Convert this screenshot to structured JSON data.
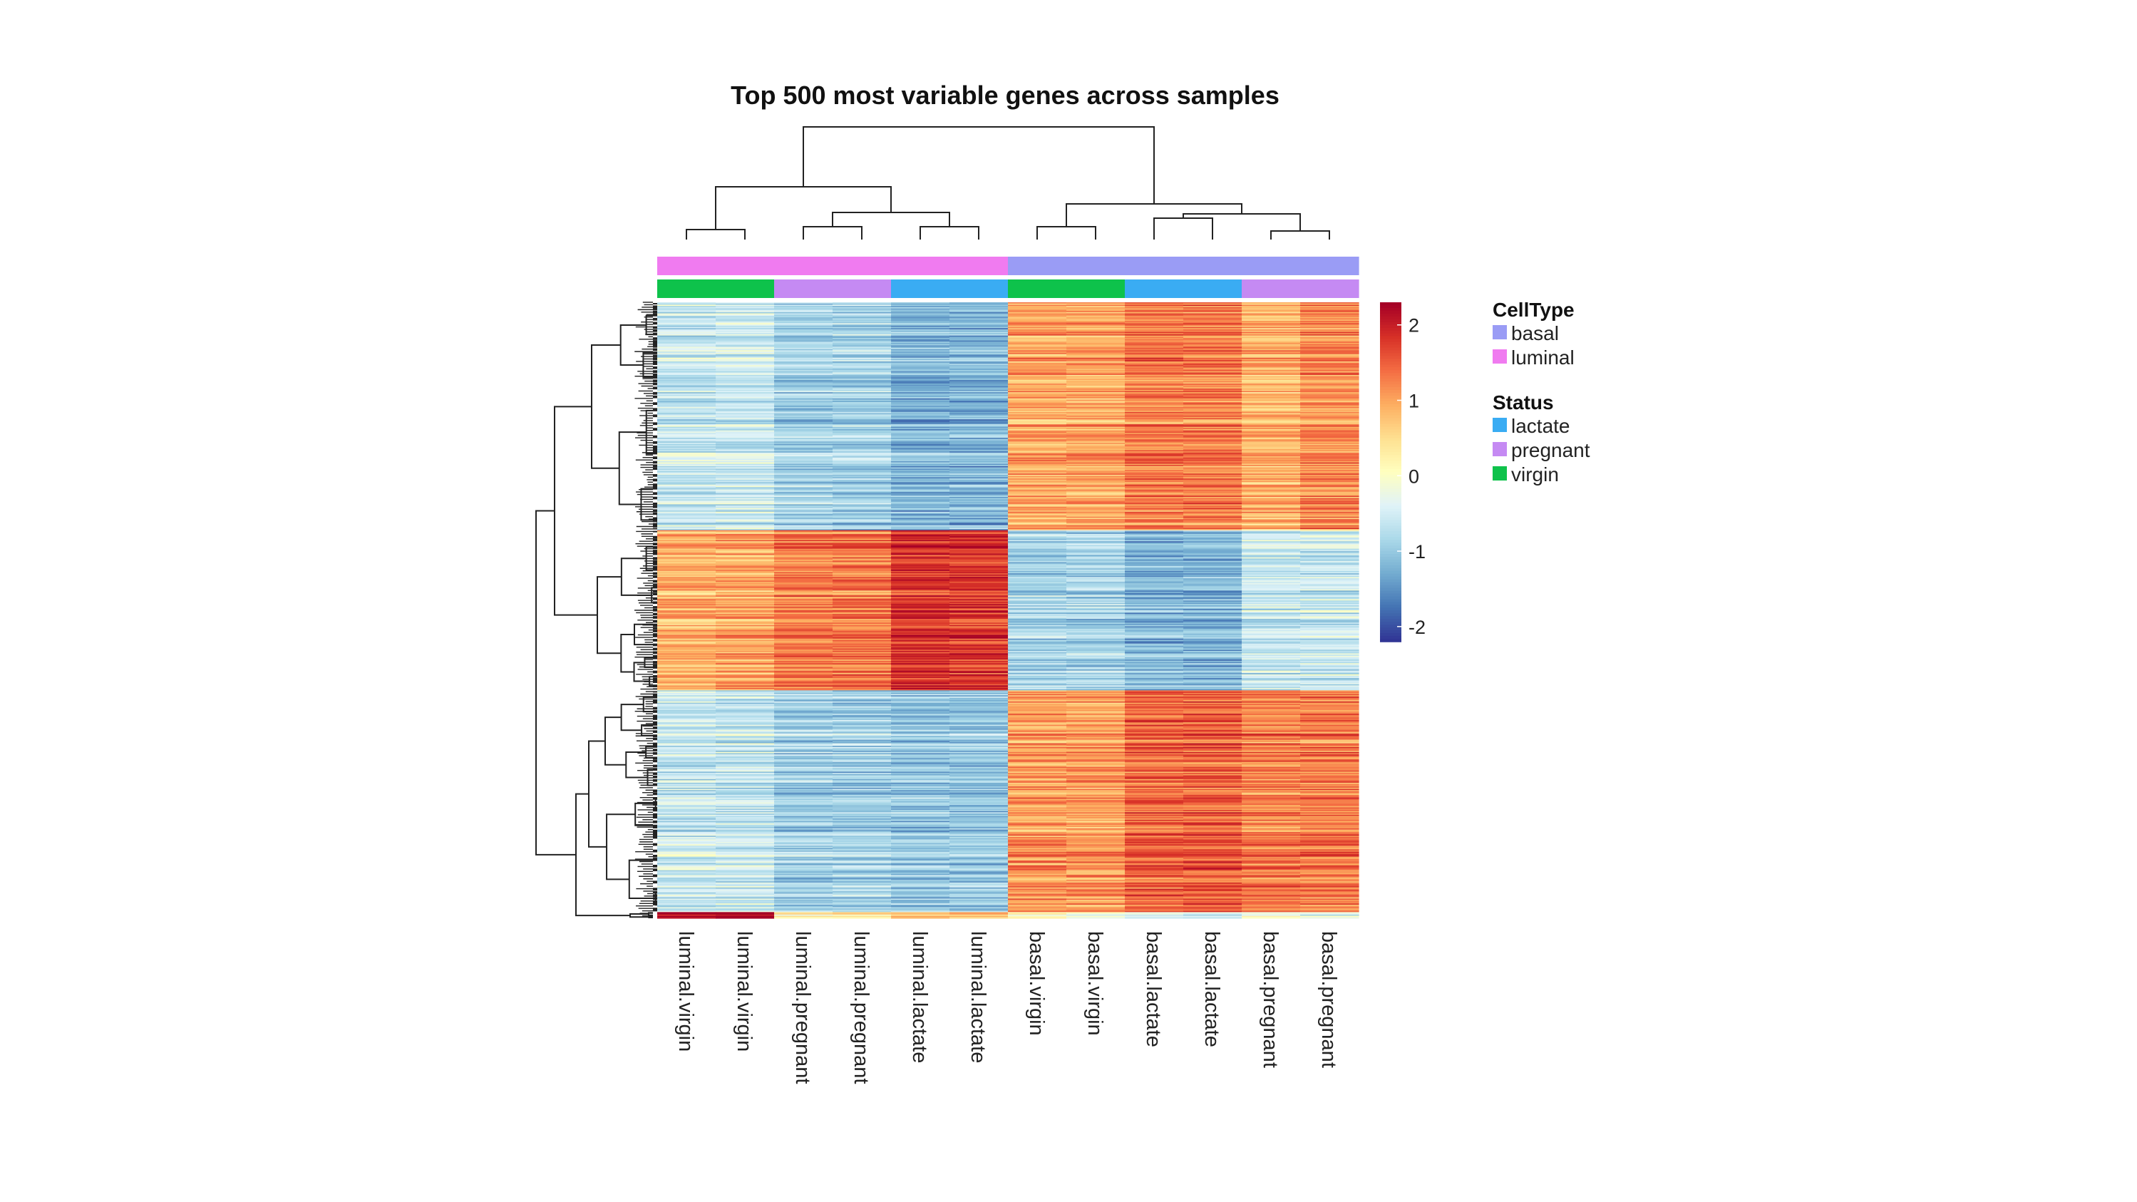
{
  "chart_data": {
    "type": "heatmap",
    "title": "Top 500 most variable genes across samples",
    "columns": [
      "luminal.virgin",
      "luminal.virgin",
      "luminal.pregnant",
      "luminal.pregnant",
      "luminal.lactate",
      "luminal.lactate",
      "basal.virgin",
      "basal.virgin",
      "basal.lactate",
      "basal.lactate",
      "basal.pregnant",
      "basal.pregnant"
    ],
    "rows": 500,
    "row_clusters": [
      {
        "rows": 185,
        "values": [
          -0.6,
          -0.6,
          -0.9,
          -0.9,
          -1.2,
          -1.2,
          1.0,
          1.0,
          1.3,
          1.3,
          0.9,
          1.2
        ]
      },
      {
        "rows": 130,
        "values": [
          0.9,
          1.0,
          1.3,
          1.3,
          1.8,
          1.8,
          -0.9,
          -0.9,
          -1.2,
          -1.2,
          -0.6,
          -0.6
        ]
      },
      {
        "rows": 180,
        "values": [
          -0.6,
          -0.6,
          -0.9,
          -0.9,
          -1.0,
          -1.0,
          1.1,
          1.1,
          1.5,
          1.5,
          1.3,
          1.3
        ]
      },
      {
        "rows": 5,
        "values": [
          2.2,
          2.2,
          0.2,
          0.2,
          0.6,
          0.6,
          0.0,
          -0.3,
          -0.6,
          -0.6,
          -0.3,
          -0.5
        ]
      }
    ],
    "color_scale": {
      "min": -2.2,
      "max": 2.3,
      "colors": [
        "#313695",
        "#4575b4",
        "#74add1",
        "#abd9e9",
        "#e0f3f8",
        "#ffffbf",
        "#fee090",
        "#fdae61",
        "#f46d43",
        "#d73027",
        "#a50026"
      ],
      "ticks": [
        2,
        1,
        0,
        -1,
        -2
      ]
    },
    "annotations": {
      "CellType": [
        "luminal",
        "luminal",
        "luminal",
        "luminal",
        "luminal",
        "luminal",
        "basal",
        "basal",
        "basal",
        "basal",
        "basal",
        "basal"
      ],
      "Status": [
        "virgin",
        "virgin",
        "pregnant",
        "pregnant",
        "lactate",
        "lactate",
        "virgin",
        "virgin",
        "lactate",
        "lactate",
        "pregnant",
        "pregnant"
      ]
    },
    "legend": [
      {
        "title": "CellType",
        "items": [
          {
            "label": "basal",
            "color": "#9a9cf5"
          },
          {
            "label": "luminal",
            "color": "#f07bf0"
          }
        ]
      },
      {
        "title": "Status",
        "items": [
          {
            "label": "lactate",
            "color": "#3aacf3"
          },
          {
            "label": "pregnant",
            "color": "#c58af3"
          },
          {
            "label": "virgin",
            "color": "#0ec24b"
          }
        ]
      }
    ],
    "legend_placement": "right"
  }
}
